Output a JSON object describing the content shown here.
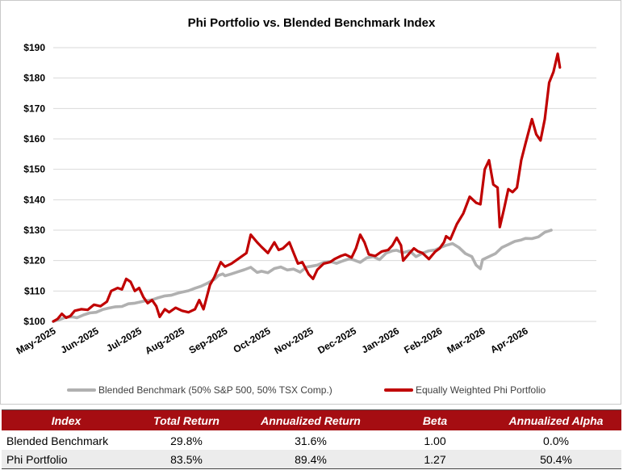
{
  "chart_data": {
    "type": "line",
    "title": "Phi Portfolio vs. Blended Benchmark Index",
    "xlabel": "",
    "ylabel": "",
    "ylim": [
      100,
      190
    ],
    "yticks": [
      100,
      110,
      120,
      130,
      140,
      150,
      160,
      170,
      180,
      190
    ],
    "ytick_labels": [
      "$100",
      "$110",
      "$120",
      "$130",
      "$140",
      "$150",
      "$160",
      "$170",
      "$180",
      "$190"
    ],
    "categories": [
      "May-2025",
      "Jun-2025",
      "Jul-2025",
      "Aug-2025",
      "Sep-2025",
      "Oct-2025",
      "Nov-2025",
      "Dec-2025",
      "Jan-2026",
      "Feb-2026",
      "Mar-2026",
      "Apr-2026"
    ],
    "grid": true,
    "legend_position": "bottom",
    "series": [
      {
        "name": "Blended Benchmark (50% S&P 500, 50% TSX Comp.)",
        "color": "#b0b0b0",
        "points": [
          [
            0,
            100
          ],
          [
            0.15,
            100.6
          ],
          [
            0.3,
            101.4
          ],
          [
            0.45,
            101.5
          ],
          [
            0.55,
            101.2
          ],
          [
            0.7,
            102.1
          ],
          [
            0.85,
            102.8
          ],
          [
            1.0,
            103.0
          ],
          [
            1.15,
            103.9
          ],
          [
            1.3,
            104.4
          ],
          [
            1.45,
            104.8
          ],
          [
            1.6,
            104.9
          ],
          [
            1.75,
            105.8
          ],
          [
            1.9,
            106.0
          ],
          [
            2.0,
            106.3
          ],
          [
            2.15,
            106.8
          ],
          [
            2.3,
            107.1
          ],
          [
            2.45,
            107.8
          ],
          [
            2.6,
            108.4
          ],
          [
            2.75,
            108.6
          ],
          [
            2.9,
            109.3
          ],
          [
            3.0,
            109.6
          ],
          [
            3.15,
            110.1
          ],
          [
            3.3,
            110.9
          ],
          [
            3.45,
            111.6
          ],
          [
            3.6,
            112.6
          ],
          [
            3.75,
            113.8
          ],
          [
            3.85,
            115.1
          ],
          [
            3.95,
            115.6
          ],
          [
            4.0,
            115.0
          ],
          [
            4.15,
            115.6
          ],
          [
            4.3,
            116.3
          ],
          [
            4.45,
            117.0
          ],
          [
            4.6,
            117.8
          ],
          [
            4.75,
            116.1
          ],
          [
            4.85,
            116.5
          ],
          [
            5.0,
            116.0
          ],
          [
            5.15,
            117.4
          ],
          [
            5.3,
            117.9
          ],
          [
            5.45,
            116.9
          ],
          [
            5.6,
            117.2
          ],
          [
            5.75,
            116.2
          ],
          [
            5.9,
            117.9
          ],
          [
            6.0,
            118.1
          ],
          [
            6.15,
            118.5
          ],
          [
            6.3,
            119.4
          ],
          [
            6.45,
            119.7
          ],
          [
            6.6,
            119.1
          ],
          [
            6.75,
            119.9
          ],
          [
            6.9,
            120.6
          ],
          [
            7.0,
            120.2
          ],
          [
            7.15,
            119.4
          ],
          [
            7.3,
            120.9
          ],
          [
            7.45,
            121.3
          ],
          [
            7.6,
            120.3
          ],
          [
            7.75,
            122.4
          ],
          [
            7.9,
            123.2
          ],
          [
            8.0,
            123.4
          ],
          [
            8.15,
            122.6
          ],
          [
            8.3,
            123.2
          ],
          [
            8.45,
            121.3
          ],
          [
            8.6,
            122.4
          ],
          [
            8.75,
            123.2
          ],
          [
            8.9,
            123.5
          ],
          [
            9.0,
            124.2
          ],
          [
            9.15,
            125.0
          ],
          [
            9.3,
            125.6
          ],
          [
            9.45,
            124.3
          ],
          [
            9.6,
            122.3
          ],
          [
            9.75,
            121.3
          ],
          [
            9.85,
            118.5
          ],
          [
            9.95,
            117.3
          ],
          [
            10.0,
            120.3
          ],
          [
            10.15,
            121.3
          ],
          [
            10.3,
            122.3
          ],
          [
            10.45,
            124.3
          ],
          [
            10.6,
            125.3
          ],
          [
            10.75,
            126.3
          ],
          [
            10.9,
            126.8
          ],
          [
            11.0,
            127.3
          ],
          [
            11.15,
            127.2
          ],
          [
            11.3,
            127.8
          ],
          [
            11.45,
            129.3
          ],
          [
            11.6,
            130.0
          ]
        ]
      },
      {
        "name": "Equally Weighted Phi Portfolio",
        "color": "#c00000",
        "points": [
          [
            0,
            100
          ],
          [
            0.1,
            100.8
          ],
          [
            0.2,
            102.5
          ],
          [
            0.3,
            101.2
          ],
          [
            0.4,
            101.8
          ],
          [
            0.5,
            103.5
          ],
          [
            0.65,
            104.0
          ],
          [
            0.8,
            103.8
          ],
          [
            0.95,
            105.5
          ],
          [
            1.1,
            105.0
          ],
          [
            1.25,
            106.5
          ],
          [
            1.35,
            110.0
          ],
          [
            1.5,
            111.0
          ],
          [
            1.6,
            110.5
          ],
          [
            1.7,
            114.0
          ],
          [
            1.8,
            113.0
          ],
          [
            1.9,
            110.0
          ],
          [
            2.0,
            111.0
          ],
          [
            2.1,
            108.0
          ],
          [
            2.2,
            106.0
          ],
          [
            2.3,
            107.0
          ],
          [
            2.4,
            105.0
          ],
          [
            2.48,
            101.5
          ],
          [
            2.6,
            104.0
          ],
          [
            2.7,
            103.0
          ],
          [
            2.85,
            104.5
          ],
          [
            3.0,
            103.5
          ],
          [
            3.15,
            103.0
          ],
          [
            3.3,
            104.0
          ],
          [
            3.4,
            107.0
          ],
          [
            3.5,
            104.0
          ],
          [
            3.65,
            112.0
          ],
          [
            3.75,
            114.5
          ],
          [
            3.9,
            119.5
          ],
          [
            4.0,
            118.0
          ],
          [
            4.15,
            119.0
          ],
          [
            4.3,
            120.5
          ],
          [
            4.5,
            122.5
          ],
          [
            4.6,
            128.5
          ],
          [
            4.75,
            126.0
          ],
          [
            4.85,
            124.5
          ],
          [
            5.0,
            122.5
          ],
          [
            5.15,
            126.0
          ],
          [
            5.25,
            123.5
          ],
          [
            5.35,
            124.0
          ],
          [
            5.5,
            126.0
          ],
          [
            5.6,
            122.5
          ],
          [
            5.7,
            119.0
          ],
          [
            5.8,
            119.5
          ],
          [
            5.95,
            115.5
          ],
          [
            6.05,
            114.0
          ],
          [
            6.15,
            117.0
          ],
          [
            6.3,
            119.0
          ],
          [
            6.45,
            119.5
          ],
          [
            6.55,
            120.5
          ],
          [
            6.7,
            121.5
          ],
          [
            6.8,
            122.0
          ],
          [
            6.95,
            121.0
          ],
          [
            7.05,
            124.0
          ],
          [
            7.15,
            128.5
          ],
          [
            7.25,
            126.0
          ],
          [
            7.35,
            122.0
          ],
          [
            7.5,
            121.5
          ],
          [
            7.65,
            123.0
          ],
          [
            7.8,
            123.5
          ],
          [
            7.9,
            125.0
          ],
          [
            8.0,
            127.5
          ],
          [
            8.1,
            125.0
          ],
          [
            8.15,
            120.0
          ],
          [
            8.3,
            122.5
          ],
          [
            8.4,
            124.0
          ],
          [
            8.5,
            123.0
          ],
          [
            8.6,
            122.5
          ],
          [
            8.75,
            120.5
          ],
          [
            8.9,
            123.0
          ],
          [
            9.0,
            124.0
          ],
          [
            9.1,
            126.0
          ],
          [
            9.15,
            128.0
          ],
          [
            9.25,
            127.0
          ],
          [
            9.4,
            132.0
          ],
          [
            9.55,
            135.5
          ],
          [
            9.7,
            141.0
          ],
          [
            9.85,
            139.0
          ],
          [
            9.95,
            138.5
          ],
          [
            10.05,
            150.0
          ],
          [
            10.15,
            153.0
          ],
          [
            10.25,
            145.0
          ],
          [
            10.35,
            144.0
          ],
          [
            10.4,
            131.0
          ],
          [
            10.5,
            137.0
          ],
          [
            10.6,
            143.5
          ],
          [
            10.7,
            142.5
          ],
          [
            10.8,
            144.0
          ],
          [
            10.9,
            153.0
          ],
          [
            11.0,
            158.5
          ],
          [
            11.15,
            166.5
          ],
          [
            11.25,
            161.5
          ],
          [
            11.35,
            159.5
          ],
          [
            11.45,
            166.5
          ],
          [
            11.55,
            178.5
          ],
          [
            11.65,
            182.0
          ],
          [
            11.75,
            188.0
          ],
          [
            11.8,
            183.5
          ]
        ]
      }
    ]
  },
  "stats_table": {
    "headers": [
      "Index",
      "Total Return",
      "Annualized Return",
      "Beta",
      "Annualized Alpha"
    ],
    "rows": [
      [
        "Blended Benchmark",
        "29.8%",
        "31.6%",
        "1.00",
        "0.0%"
      ],
      [
        "Phi Portfolio",
        "83.5%",
        "89.4%",
        "1.27",
        "50.4%"
      ]
    ],
    "header_color": "#a50d12"
  }
}
